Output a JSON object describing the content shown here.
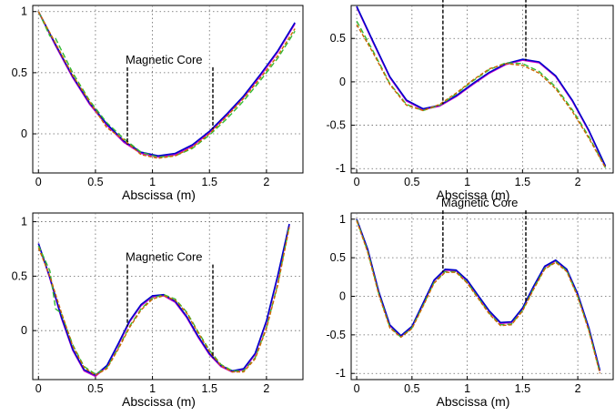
{
  "chart_data": [
    {
      "type": "line",
      "xlabel": "Abscissa (m)",
      "ylabel": "",
      "xlim": [
        -0.05,
        2.32
      ],
      "ylim": [
        -0.32,
        1.05
      ],
      "xticks": [
        0,
        0.5,
        1,
        1.5,
        2
      ],
      "xtick_labels": [
        "0",
        "0.5",
        "1",
        "1.5",
        "2"
      ],
      "yticks": [
        0,
        0.5,
        1
      ],
      "ytick_labels": [
        "0",
        "0.5",
        "1"
      ],
      "grid": true,
      "annotation": {
        "text": "Magnetic Core",
        "x_start": 0.78,
        "x_end": 1.53
      },
      "series": [
        {
          "color": "#cc00cc",
          "x": [
            0,
            0.15,
            0.3,
            0.45,
            0.6,
            0.75,
            0.9,
            1.05,
            1.2,
            1.35,
            1.5,
            1.65,
            1.8,
            1.95,
            2.1,
            2.25
          ],
          "y": [
            1.0,
            0.72,
            0.46,
            0.24,
            0.07,
            -0.07,
            -0.16,
            -0.19,
            -0.17,
            -0.1,
            0.01,
            0.15,
            0.3,
            0.48,
            0.67,
            0.9
          ]
        },
        {
          "color": "#0000cc",
          "x": [
            0,
            0.15,
            0.3,
            0.45,
            0.6,
            0.75,
            0.9,
            1.05,
            1.2,
            1.35,
            1.5,
            1.65,
            1.8,
            1.95,
            2.1,
            2.25
          ],
          "y": [
            1.0,
            0.73,
            0.47,
            0.25,
            0.08,
            -0.06,
            -0.15,
            -0.18,
            -0.16,
            -0.09,
            0.02,
            0.16,
            0.31,
            0.49,
            0.68,
            0.91
          ]
        },
        {
          "color": "#33bb33",
          "x": [
            0,
            0.1,
            0.15,
            0.3,
            0.45,
            0.6,
            0.75,
            0.9,
            1.05,
            1.2,
            1.35,
            1.5,
            1.65,
            1.8,
            1.95,
            2.1,
            2.25
          ],
          "y": [
            1.0,
            0.8,
            0.78,
            0.5,
            0.27,
            0.09,
            -0.04,
            -0.15,
            -0.19,
            -0.18,
            -0.12,
            -0.01,
            0.12,
            0.27,
            0.44,
            0.62,
            0.84
          ]
        },
        {
          "color": "#cc6600",
          "x": [
            0,
            0.15,
            0.3,
            0.45,
            0.6,
            0.75,
            0.9,
            1.05,
            1.2,
            1.35,
            1.5,
            1.65,
            1.8,
            1.95,
            2.1,
            2.25
          ],
          "y": [
            1.0,
            0.74,
            0.48,
            0.26,
            0.05,
            -0.05,
            -0.17,
            -0.2,
            -0.18,
            -0.11,
            0.0,
            0.14,
            0.29,
            0.46,
            0.64,
            0.86
          ]
        }
      ]
    },
    {
      "type": "line",
      "xlabel": "Abscissa (m)",
      "ylabel": "",
      "xlim": [
        -0.05,
        2.32
      ],
      "ylim": [
        -1.05,
        0.88
      ],
      "xticks": [
        0,
        0.5,
        1,
        1.5,
        2
      ],
      "xtick_labels": [
        "0",
        "0.5",
        "1",
        "1.5",
        "2"
      ],
      "yticks": [
        -1,
        -0.5,
        0,
        0.5
      ],
      "ytick_labels": [
        "-1",
        "-0.5",
        "0",
        "0.5"
      ],
      "grid": true,
      "annotation": {
        "text": "Magnetic Core",
        "x_start": 0.78,
        "x_end": 1.53
      },
      "series": [
        {
          "color": "#cc00cc",
          "x": [
            0,
            0.15,
            0.3,
            0.45,
            0.6,
            0.75,
            0.9,
            1.05,
            1.2,
            1.35,
            1.5,
            1.65,
            1.8,
            1.95,
            2.1,
            2.25
          ],
          "y": [
            0.86,
            0.45,
            0.05,
            -0.22,
            -0.32,
            -0.28,
            -0.17,
            -0.03,
            0.1,
            0.2,
            0.25,
            0.22,
            0.06,
            -0.22,
            -0.57,
            -0.98
          ]
        },
        {
          "color": "#0000cc",
          "x": [
            0,
            0.15,
            0.3,
            0.45,
            0.6,
            0.75,
            0.9,
            1.05,
            1.2,
            1.35,
            1.5,
            1.65,
            1.8,
            1.95,
            2.1,
            2.25
          ],
          "y": [
            0.87,
            0.46,
            0.06,
            -0.21,
            -0.31,
            -0.27,
            -0.16,
            -0.02,
            0.11,
            0.21,
            0.26,
            0.23,
            0.07,
            -0.21,
            -0.56,
            -0.97
          ]
        },
        {
          "color": "#33bb33",
          "x": [
            0,
            0.15,
            0.3,
            0.45,
            0.6,
            0.75,
            0.9,
            1.05,
            1.2,
            1.35,
            1.5,
            1.65,
            1.8,
            1.95,
            2.1,
            2.25
          ],
          "y": [
            0.7,
            0.35,
            -0.02,
            -0.26,
            -0.33,
            -0.27,
            -0.14,
            0.01,
            0.14,
            0.22,
            0.21,
            0.12,
            -0.06,
            -0.32,
            -0.63,
            -0.99
          ]
        },
        {
          "color": "#cc6600",
          "x": [
            0,
            0.15,
            0.3,
            0.45,
            0.6,
            0.75,
            0.9,
            1.05,
            1.2,
            1.35,
            1.5,
            1.65,
            1.8,
            1.95,
            2.1,
            2.25
          ],
          "y": [
            0.66,
            0.33,
            -0.03,
            -0.27,
            -0.33,
            -0.26,
            -0.13,
            0.02,
            0.15,
            0.21,
            0.19,
            0.1,
            -0.08,
            -0.34,
            -0.65,
            -0.99
          ]
        }
      ]
    },
    {
      "type": "line",
      "xlabel": "Abscissa (m)",
      "ylabel": "",
      "xlim": [
        -0.05,
        2.32
      ],
      "ylim": [
        -0.45,
        1.08
      ],
      "xticks": [
        0,
        0.5,
        1,
        1.5,
        2
      ],
      "xtick_labels": [
        "0",
        "0.5",
        "1",
        "1.5",
        "2"
      ],
      "yticks": [
        0,
        0.5,
        1
      ],
      "ytick_labels": [
        "0",
        "0.5",
        "1"
      ],
      "grid": true,
      "annotation": {
        "text": "Magnetic Core",
        "x_start": 0.78,
        "x_end": 1.53
      },
      "series": [
        {
          "color": "#cc00cc",
          "x": [
            0,
            0.1,
            0.2,
            0.3,
            0.4,
            0.5,
            0.6,
            0.7,
            0.8,
            0.9,
            1.0,
            1.1,
            1.2,
            1.3,
            1.4,
            1.5,
            1.6,
            1.7,
            1.8,
            1.9,
            2.0,
            2.1,
            2.2
          ],
          "y": [
            0.8,
            0.48,
            0.12,
            -0.18,
            -0.37,
            -0.42,
            -0.33,
            -0.13,
            0.08,
            0.23,
            0.31,
            0.32,
            0.26,
            0.12,
            -0.06,
            -0.22,
            -0.33,
            -0.38,
            -0.36,
            -0.22,
            0.08,
            0.5,
            0.97
          ]
        },
        {
          "color": "#0000cc",
          "x": [
            0,
            0.1,
            0.2,
            0.3,
            0.4,
            0.5,
            0.6,
            0.7,
            0.8,
            0.9,
            1.0,
            1.1,
            1.2,
            1.3,
            1.4,
            1.5,
            1.6,
            1.7,
            1.8,
            1.9,
            2.0,
            2.1,
            2.2
          ],
          "y": [
            0.8,
            0.49,
            0.13,
            -0.17,
            -0.36,
            -0.41,
            -0.32,
            -0.12,
            0.09,
            0.24,
            0.32,
            0.33,
            0.27,
            0.13,
            -0.05,
            -0.21,
            -0.32,
            -0.37,
            -0.35,
            -0.21,
            0.09,
            0.51,
            0.98
          ]
        },
        {
          "color": "#33bb33",
          "x": [
            0,
            0.1,
            0.15,
            0.2,
            0.3,
            0.4,
            0.5,
            0.6,
            0.7,
            0.8,
            0.9,
            1.0,
            1.1,
            1.2,
            1.3,
            1.4,
            1.5,
            1.6,
            1.7,
            1.8,
            1.9,
            2.0,
            2.1,
            2.2
          ],
          "y": [
            0.78,
            0.55,
            0.2,
            0.16,
            -0.13,
            -0.33,
            -0.4,
            -0.34,
            -0.16,
            0.04,
            0.2,
            0.3,
            0.33,
            0.29,
            0.17,
            -0.01,
            -0.18,
            -0.31,
            -0.37,
            -0.37,
            -0.25,
            0.03,
            0.43,
            0.96
          ]
        },
        {
          "color": "#cc6600",
          "x": [
            0,
            0.1,
            0.2,
            0.3,
            0.4,
            0.5,
            0.6,
            0.7,
            0.8,
            0.9,
            1.0,
            1.1,
            1.2,
            1.3,
            1.4,
            1.5,
            1.6,
            1.7,
            1.8,
            1.9,
            2.0,
            2.1,
            2.2
          ],
          "y": [
            0.76,
            0.5,
            0.17,
            -0.14,
            -0.34,
            -0.41,
            -0.35,
            -0.17,
            0.03,
            0.19,
            0.29,
            0.32,
            0.28,
            0.16,
            -0.02,
            -0.19,
            -0.32,
            -0.38,
            -0.38,
            -0.26,
            0.02,
            0.42,
            0.95
          ]
        }
      ]
    },
    {
      "type": "line",
      "xlabel": "Abscissa (m)",
      "ylabel": "",
      "xlim": [
        -0.05,
        2.32
      ],
      "ylim": [
        -1.08,
        1.08
      ],
      "xticks": [
        0,
        0.5,
        1,
        1.5,
        2
      ],
      "xtick_labels": [
        "0",
        "0.5",
        "1",
        "1.5",
        "2"
      ],
      "yticks": [
        -1,
        -0.5,
        0,
        0.5,
        1
      ],
      "ytick_labels": [
        "-1",
        "-0.5",
        "0",
        "0.5",
        "1"
      ],
      "grid": true,
      "annotation": {
        "text": "Magnetic Core",
        "x_start": 0.78,
        "x_end": 1.53
      },
      "series": [
        {
          "color": "#cc00cc",
          "x": [
            0,
            0.1,
            0.2,
            0.3,
            0.4,
            0.5,
            0.6,
            0.7,
            0.8,
            0.9,
            1.0,
            1.1,
            1.2,
            1.3,
            1.4,
            1.5,
            1.6,
            1.7,
            1.8,
            1.9,
            2.0,
            2.1,
            2.2
          ],
          "y": [
            1.0,
            0.6,
            0.05,
            -0.38,
            -0.52,
            -0.4,
            -0.1,
            0.2,
            0.34,
            0.33,
            0.2,
            0.0,
            -0.2,
            -0.35,
            -0.34,
            -0.16,
            0.12,
            0.38,
            0.46,
            0.34,
            0.02,
            -0.42,
            -0.97
          ]
        },
        {
          "color": "#0000cc",
          "x": [
            0,
            0.1,
            0.2,
            0.3,
            0.4,
            0.5,
            0.6,
            0.7,
            0.8,
            0.9,
            1.0,
            1.1,
            1.2,
            1.3,
            1.4,
            1.5,
            1.6,
            1.7,
            1.8,
            1.9,
            2.0,
            2.1,
            2.2
          ],
          "y": [
            1.0,
            0.61,
            0.06,
            -0.37,
            -0.51,
            -0.39,
            -0.09,
            0.21,
            0.35,
            0.34,
            0.21,
            0.01,
            -0.19,
            -0.34,
            -0.33,
            -0.15,
            0.13,
            0.39,
            0.47,
            0.35,
            0.03,
            -0.41,
            -0.96
          ]
        },
        {
          "color": "#33bb33",
          "x": [
            0,
            0.1,
            0.2,
            0.3,
            0.4,
            0.5,
            0.6,
            0.7,
            0.8,
            0.9,
            1.0,
            1.1,
            1.2,
            1.3,
            1.4,
            1.5,
            1.6,
            1.7,
            1.8,
            1.9,
            2.0,
            2.1,
            2.2
          ],
          "y": [
            0.99,
            0.58,
            0.03,
            -0.4,
            -0.53,
            -0.41,
            -0.12,
            0.18,
            0.32,
            0.32,
            0.18,
            -0.02,
            -0.22,
            -0.37,
            -0.36,
            -0.18,
            0.1,
            0.36,
            0.45,
            0.33,
            0.0,
            -0.44,
            -0.99
          ]
        },
        {
          "color": "#cc6600",
          "x": [
            0,
            0.1,
            0.2,
            0.3,
            0.4,
            0.5,
            0.6,
            0.7,
            0.8,
            0.9,
            1.0,
            1.1,
            1.2,
            1.3,
            1.4,
            1.5,
            1.6,
            1.7,
            1.8,
            1.9,
            2.0,
            2.1,
            2.2
          ],
          "y": [
            0.98,
            0.57,
            0.02,
            -0.41,
            -0.53,
            -0.42,
            -0.13,
            0.17,
            0.31,
            0.31,
            0.17,
            -0.03,
            -0.23,
            -0.38,
            -0.37,
            -0.19,
            0.09,
            0.35,
            0.44,
            0.32,
            -0.01,
            -0.45,
            -1.0
          ]
        }
      ]
    }
  ]
}
